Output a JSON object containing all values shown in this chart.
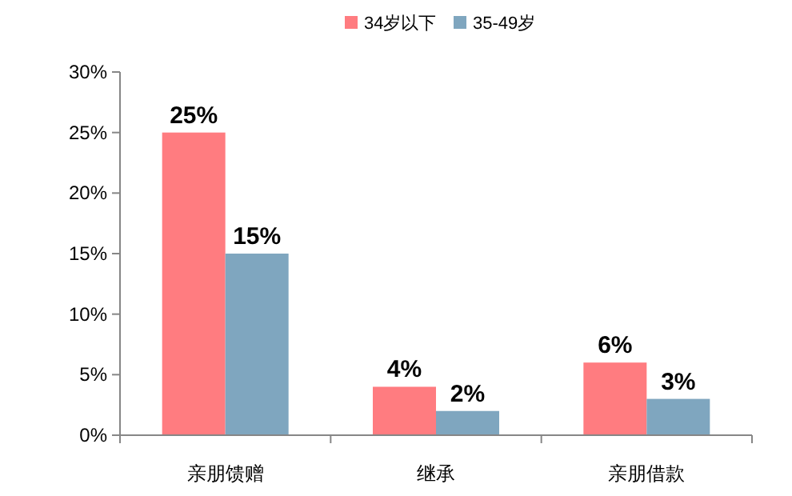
{
  "chart_data": {
    "type": "bar",
    "categories": [
      "亲朋馈赠",
      "继承",
      "亲朋借款"
    ],
    "series": [
      {
        "name": "34岁以下",
        "color": "#ff7c80",
        "values": [
          25,
          4,
          6
        ],
        "value_labels": [
          "25%",
          "4%",
          "6%"
        ]
      },
      {
        "name": "35-49岁",
        "color": "#7fa6bf",
        "values": [
          15,
          2,
          3
        ],
        "value_labels": [
          "15%",
          "2%",
          "3%"
        ]
      }
    ],
    "ylim": [
      0,
      30
    ],
    "yticks": [
      {
        "value": 0,
        "label": "0%"
      },
      {
        "value": 5,
        "label": "5%"
      },
      {
        "value": 10,
        "label": "10%"
      },
      {
        "value": 15,
        "label": "15%"
      },
      {
        "value": 20,
        "label": "20%"
      },
      {
        "value": 25,
        "label": "25%"
      },
      {
        "value": 30,
        "label": "30%"
      }
    ],
    "grid": false,
    "legend": "top"
  }
}
